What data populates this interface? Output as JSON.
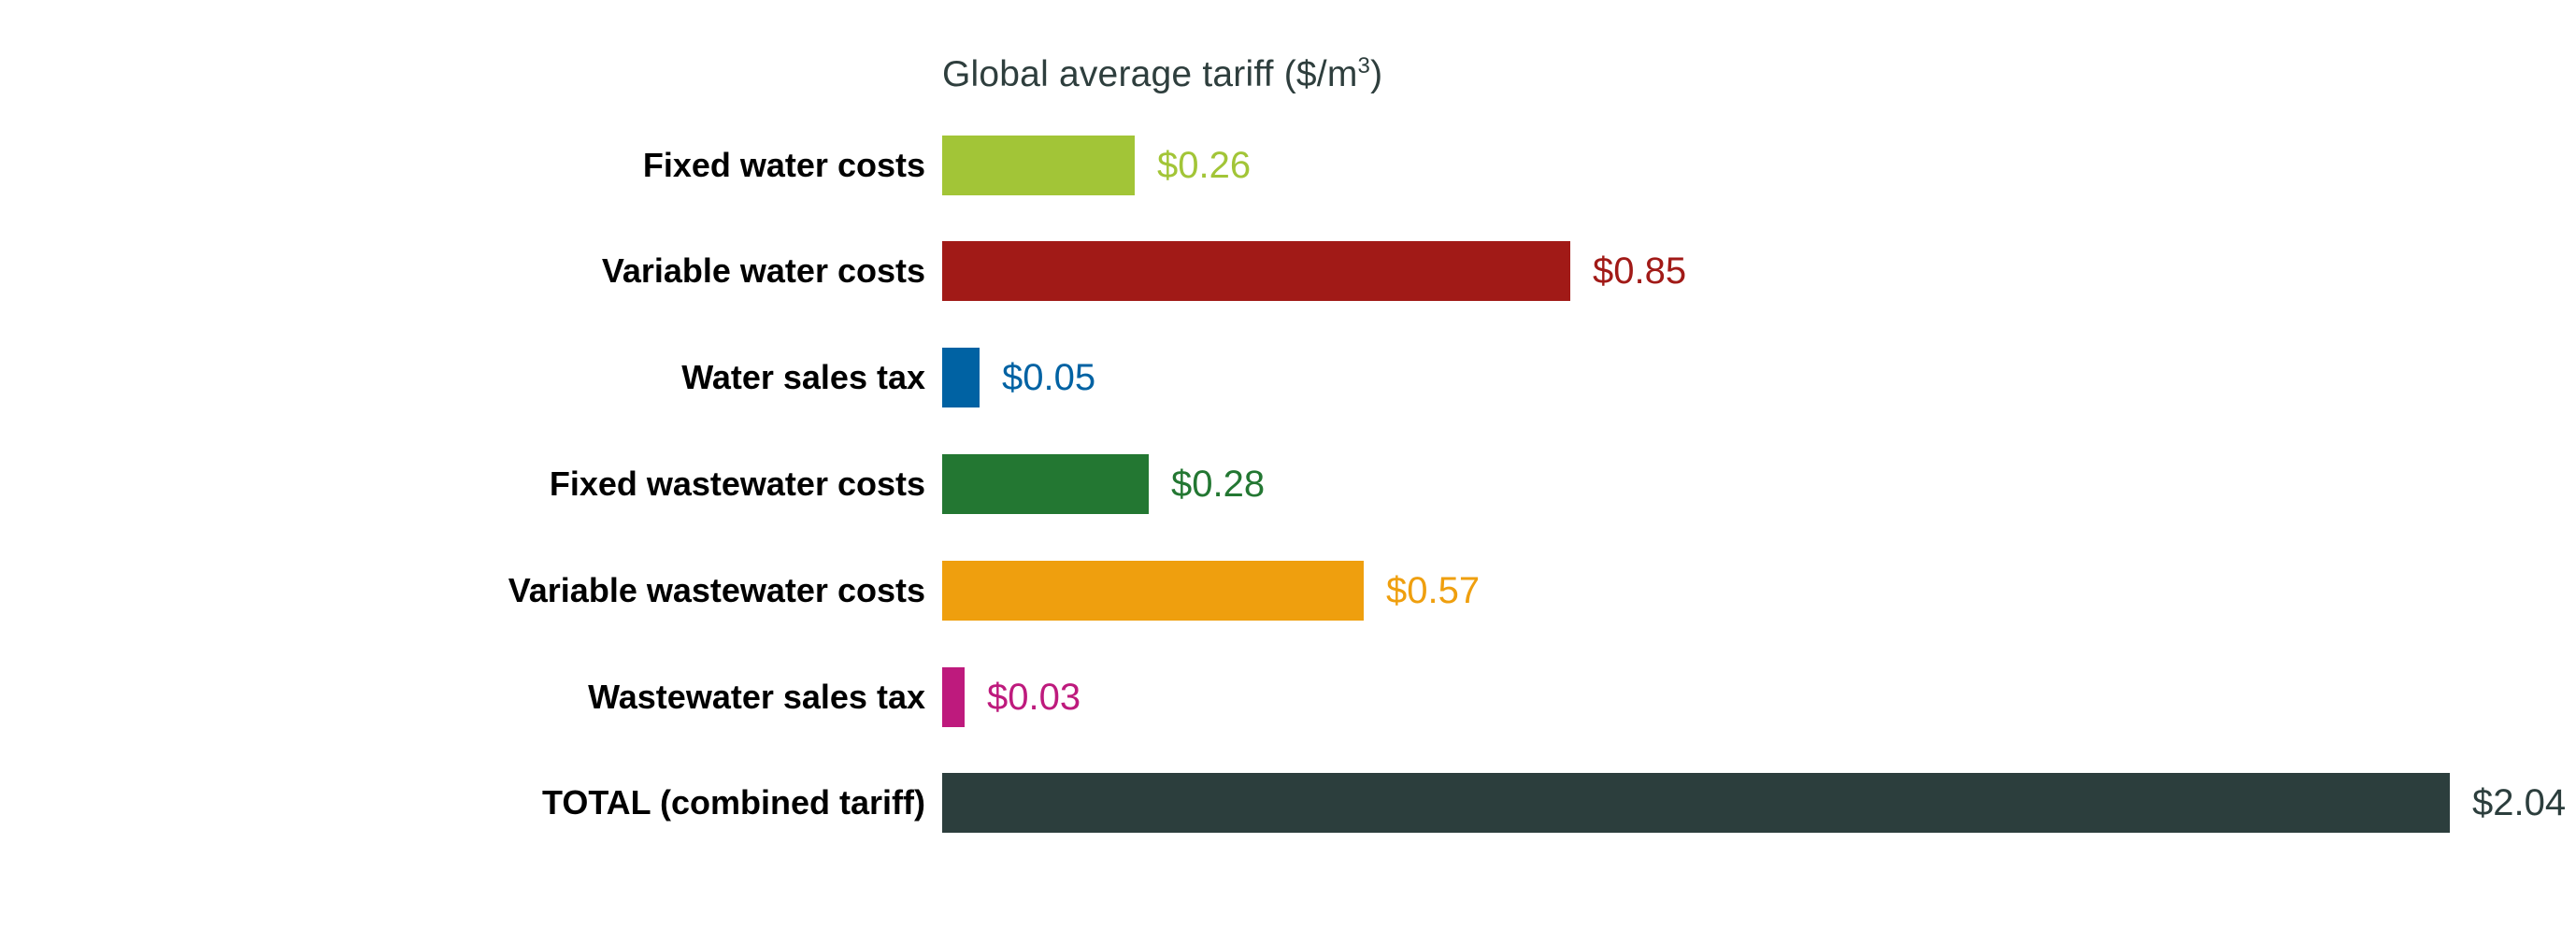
{
  "chart_data": {
    "type": "bar",
    "orientation": "horizontal",
    "title": "Global average tariff ($/m³)",
    "title_main": "Global average tariff ($/m",
    "title_sup": "3",
    "title_close": ")",
    "xlabel": "",
    "ylabel": "",
    "xlim": [
      0,
      2.04
    ],
    "grid": false,
    "legend": null,
    "categories": [
      "Fixed water costs",
      "Variable water costs",
      "Water sales tax",
      "Fixed wastewater costs",
      "Variable wastewater costs",
      "Wastewater sales tax",
      "TOTAL (combined tariff)"
    ],
    "values": [
      0.26,
      0.85,
      0.05,
      0.28,
      0.57,
      0.03,
      2.04
    ],
    "value_labels": [
      "$0.26",
      "$0.85",
      "$0.05",
      "$0.28",
      "$0.57",
      "$0.03",
      "$2.04"
    ],
    "colors": [
      "#a2c537",
      "#a11a17",
      "#0062a3",
      "#237732",
      "#ef9f0e",
      "#be1a7d",
      "#2c3e3d"
    ]
  },
  "rows": [
    {
      "label": "Fixed water costs",
      "value": 0.26,
      "value_label": "$0.26",
      "color": "#a2c537"
    },
    {
      "label": "Variable water costs",
      "value": 0.85,
      "value_label": "$0.85",
      "color": "#a11a17"
    },
    {
      "label": "Water sales tax",
      "value": 0.05,
      "value_label": "$0.05",
      "color": "#0062a3"
    },
    {
      "label": "Fixed wastewater costs",
      "value": 0.28,
      "value_label": "$0.28",
      "color": "#237732"
    },
    {
      "label": "Variable wastewater costs",
      "value": 0.57,
      "value_label": "$0.57",
      "color": "#ef9f0e"
    },
    {
      "label": "Wastewater sales tax",
      "value": 0.03,
      "value_label": "$0.03",
      "color": "#be1a7d"
    },
    {
      "label": "TOTAL (combined tariff)",
      "value": 2.04,
      "value_label": "$2.04",
      "color": "#2c3e3d"
    }
  ]
}
